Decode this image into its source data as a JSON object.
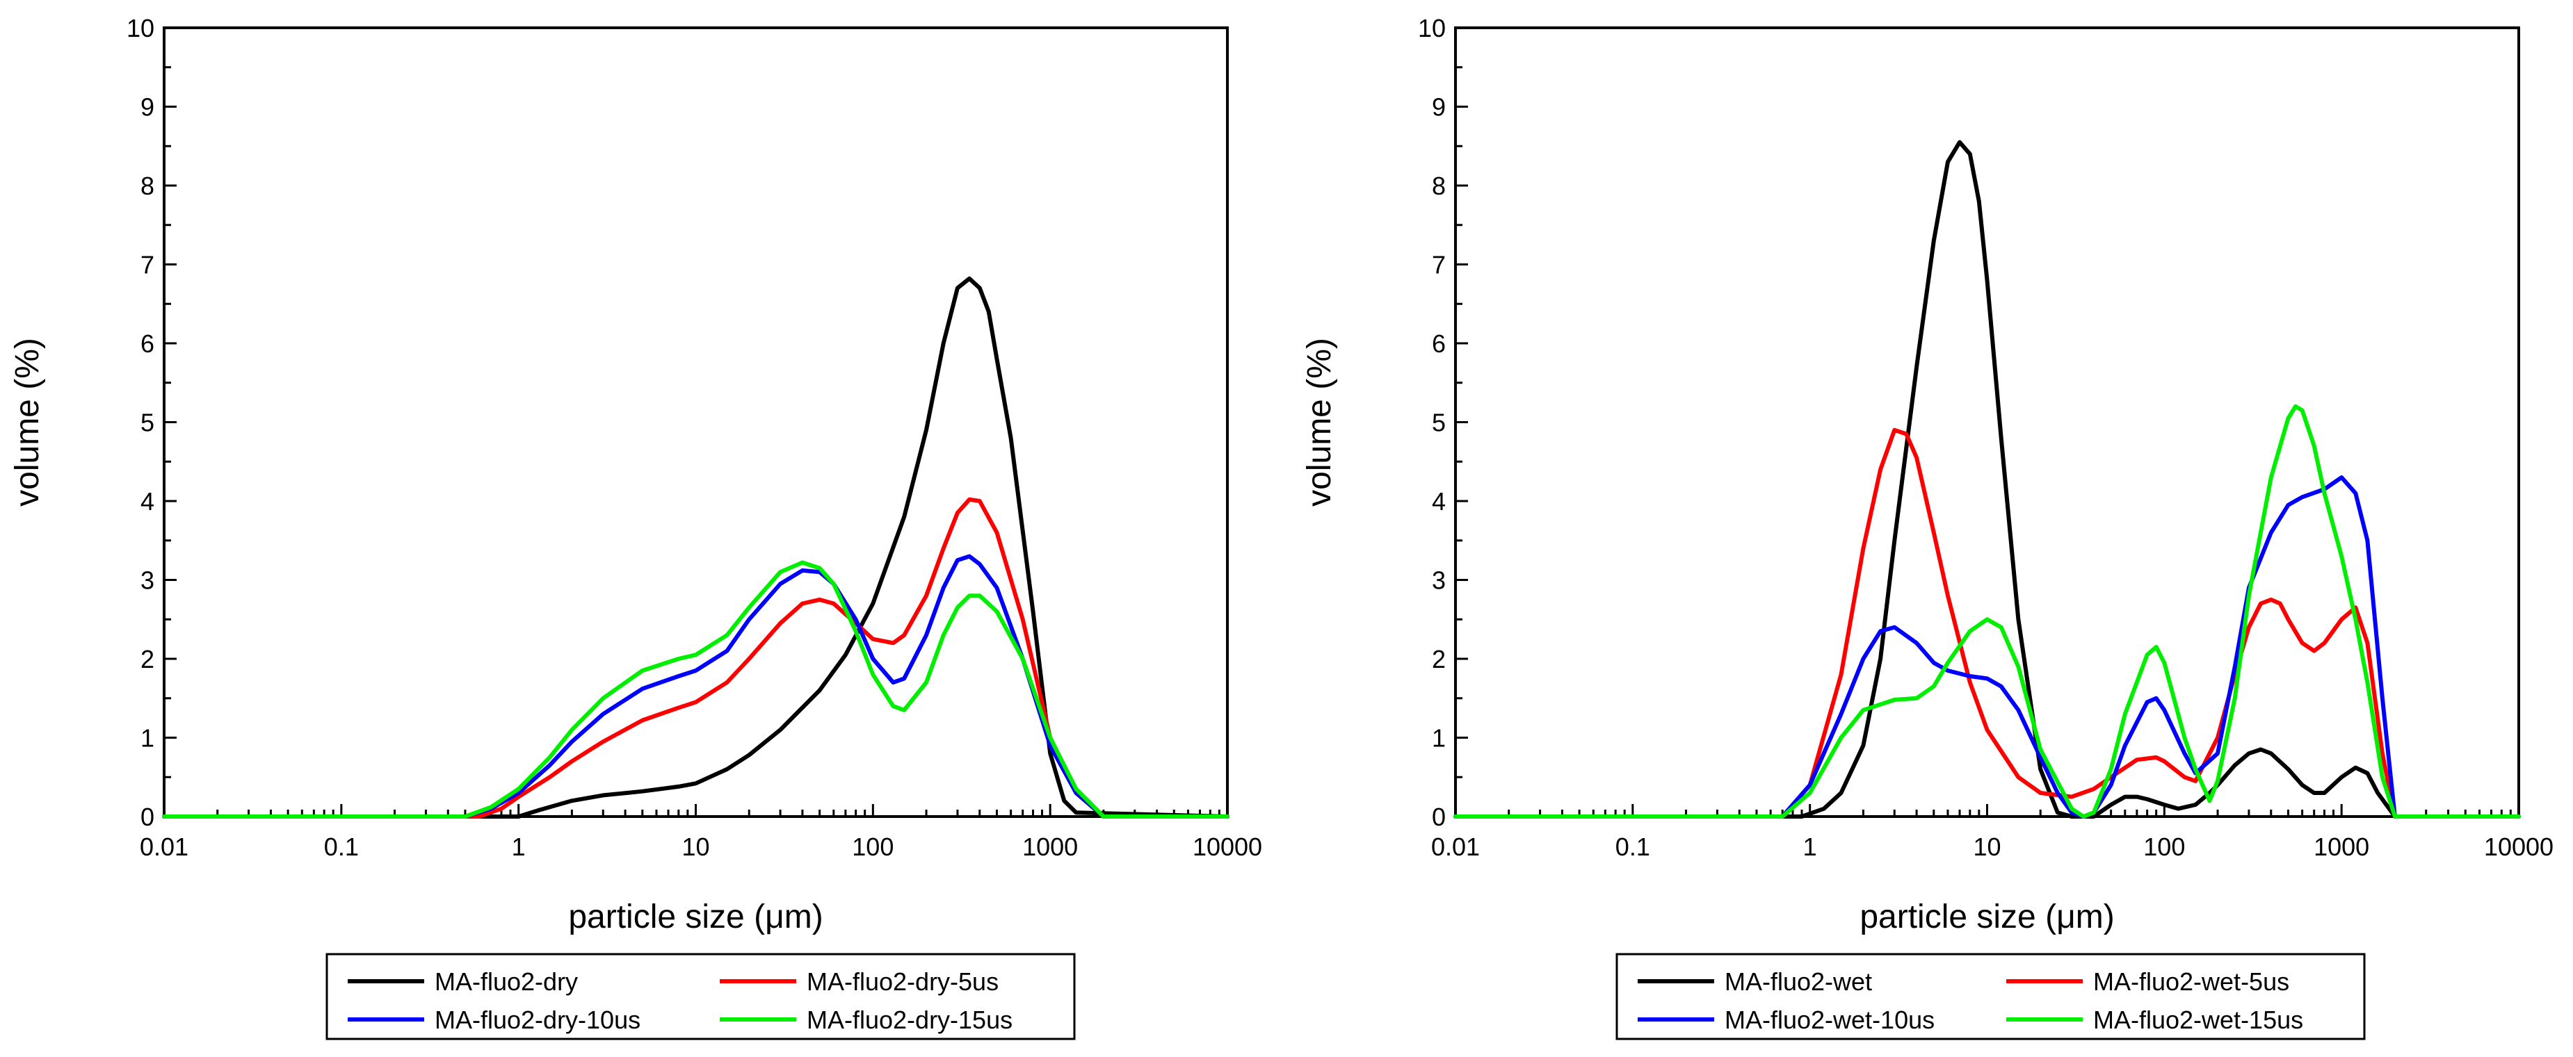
{
  "chart_data": [
    {
      "type": "line",
      "title": "",
      "xlabel": "particle size (μm)",
      "ylabel": "volume (%)",
      "xscale": "log",
      "xlim": [
        0.01,
        10000
      ],
      "ylim": [
        0,
        10
      ],
      "xticks": [
        0.01,
        0.1,
        1,
        10,
        100,
        1000,
        10000
      ],
      "xtick_labels": [
        "0.01",
        "0.1",
        "1",
        "10",
        "100",
        "1000",
        "10000"
      ],
      "yticks": [
        0,
        1,
        2,
        3,
        4,
        5,
        6,
        7,
        8,
        9,
        10
      ],
      "ytick_labels": [
        "0",
        "1",
        "2",
        "3",
        "4",
        "5",
        "6",
        "7",
        "8",
        "9",
        "10"
      ],
      "legend_position": "below",
      "series": [
        {
          "name": "MA-fluo2-dry",
          "color": "#000000",
          "x": [
            0.01,
            1.0,
            1.3,
            2,
            3,
            5,
            8,
            10,
            15,
            20,
            30,
            50,
            70,
            100,
            150,
            200,
            250,
            300,
            350,
            400,
            450,
            500,
            600,
            800,
            1000,
            1200,
            1400,
            10000
          ],
          "y": [
            0,
            0,
            0.08,
            0.2,
            0.27,
            0.32,
            0.38,
            0.42,
            0.6,
            0.78,
            1.1,
            1.6,
            2.05,
            2.7,
            3.8,
            4.9,
            6.0,
            6.7,
            6.82,
            6.7,
            6.4,
            5.8,
            4.8,
            2.6,
            0.8,
            0.2,
            0.05,
            0
          ]
        },
        {
          "name": "MA-fluo2-dry-5us",
          "color": "#ff0000",
          "x": [
            0.01,
            0.6,
            0.8,
            1,
            1.5,
            2,
            3,
            5,
            8,
            10,
            15,
            20,
            30,
            40,
            50,
            60,
            80,
            100,
            130,
            150,
            200,
            250,
            300,
            350,
            400,
            500,
            700,
            1000,
            1400,
            2000,
            10000
          ],
          "y": [
            0,
            0,
            0.1,
            0.25,
            0.5,
            0.7,
            0.95,
            1.22,
            1.38,
            1.45,
            1.7,
            2.0,
            2.45,
            2.7,
            2.75,
            2.7,
            2.45,
            2.25,
            2.2,
            2.3,
            2.8,
            3.4,
            3.85,
            4.02,
            4.0,
            3.6,
            2.5,
            1.0,
            0.3,
            0,
            0
          ]
        },
        {
          "name": "MA-fluo2-dry-10us",
          "color": "#0000ff",
          "x": [
            0.01,
            0.5,
            0.7,
            1,
            1.5,
            2,
            3,
            5,
            8,
            10,
            15,
            20,
            30,
            40,
            50,
            60,
            80,
            100,
            130,
            150,
            200,
            250,
            300,
            350,
            400,
            500,
            700,
            1000,
            1400,
            2000,
            10000
          ],
          "y": [
            0,
            0,
            0.1,
            0.3,
            0.65,
            0.95,
            1.3,
            1.62,
            1.78,
            1.85,
            2.1,
            2.5,
            2.95,
            3.12,
            3.1,
            2.95,
            2.5,
            2.0,
            1.7,
            1.75,
            2.3,
            2.9,
            3.25,
            3.3,
            3.2,
            2.9,
            2.0,
            0.9,
            0.3,
            0,
            0
          ]
        },
        {
          "name": "MA-fluo2-dry-15us",
          "color": "#00ee00",
          "x": [
            0.01,
            0.5,
            0.7,
            1,
            1.5,
            2,
            3,
            5,
            8,
            10,
            15,
            20,
            30,
            40,
            50,
            60,
            80,
            100,
            130,
            150,
            200,
            250,
            300,
            350,
            400,
            500,
            700,
            1000,
            1400,
            2000,
            10000
          ],
          "y": [
            0,
            0,
            0.12,
            0.35,
            0.75,
            1.1,
            1.5,
            1.85,
            2.0,
            2.05,
            2.3,
            2.65,
            3.1,
            3.22,
            3.15,
            2.95,
            2.35,
            1.8,
            1.4,
            1.35,
            1.7,
            2.3,
            2.65,
            2.8,
            2.8,
            2.6,
            2.0,
            1.0,
            0.35,
            0,
            0
          ]
        }
      ]
    },
    {
      "type": "line",
      "title": "",
      "xlabel": "particle size (μm)",
      "ylabel": "volume (%)",
      "xscale": "log",
      "xlim": [
        0.01,
        10000
      ],
      "ylim": [
        0,
        10
      ],
      "xticks": [
        0.01,
        0.1,
        1,
        10,
        100,
        1000,
        10000
      ],
      "xtick_labels": [
        "0.01",
        "0.1",
        "1",
        "10",
        "100",
        "1000",
        "10000"
      ],
      "yticks": [
        0,
        1,
        2,
        3,
        4,
        5,
        6,
        7,
        8,
        9,
        10
      ],
      "ytick_labels": [
        "0",
        "1",
        "2",
        "3",
        "4",
        "5",
        "6",
        "7",
        "8",
        "9",
        "10"
      ],
      "legend_position": "below",
      "series": [
        {
          "name": "MA-fluo2-wet",
          "color": "#000000",
          "x": [
            0.01,
            0.9,
            1.2,
            1.5,
            2,
            2.5,
            3,
            4,
            5,
            6,
            7,
            8,
            9,
            10,
            12,
            15,
            20,
            25,
            30,
            40,
            50,
            60,
            70,
            80,
            100,
            120,
            150,
            180,
            200,
            250,
            300,
            350,
            400,
            500,
            600,
            700,
            800,
            1000,
            1200,
            1400,
            1600,
            2000,
            10000
          ],
          "y": [
            0,
            0,
            0.1,
            0.3,
            0.9,
            2.0,
            3.5,
            5.7,
            7.3,
            8.3,
            8.55,
            8.4,
            7.8,
            6.8,
            4.8,
            2.5,
            0.6,
            0.05,
            0,
            0,
            0.15,
            0.25,
            0.25,
            0.22,
            0.15,
            0.1,
            0.15,
            0.3,
            0.4,
            0.65,
            0.8,
            0.85,
            0.8,
            0.6,
            0.4,
            0.3,
            0.3,
            0.5,
            0.62,
            0.55,
            0.3,
            0,
            0
          ]
        },
        {
          "name": "MA-fluo2-wet-5us",
          "color": "#ff0000",
          "x": [
            0.01,
            0.7,
            1,
            1.5,
            2,
            2.5,
            3,
            3.5,
            4,
            5,
            6,
            8,
            10,
            15,
            20,
            30,
            40,
            50,
            70,
            90,
            100,
            130,
            150,
            200,
            250,
            300,
            350,
            400,
            450,
            500,
            600,
            700,
            800,
            1000,
            1200,
            1400,
            1700,
            2000,
            10000
          ],
          "y": [
            0,
            0,
            0.4,
            1.8,
            3.4,
            4.4,
            4.9,
            4.85,
            4.55,
            3.6,
            2.8,
            1.7,
            1.1,
            0.5,
            0.3,
            0.25,
            0.35,
            0.5,
            0.72,
            0.75,
            0.7,
            0.5,
            0.45,
            1.0,
            1.8,
            2.4,
            2.7,
            2.75,
            2.7,
            2.5,
            2.2,
            2.1,
            2.2,
            2.5,
            2.65,
            2.2,
            0.8,
            0,
            0
          ]
        },
        {
          "name": "MA-fluo2-wet-10us",
          "color": "#0000ff",
          "x": [
            0.01,
            0.7,
            1,
            1.5,
            2,
            2.5,
            3,
            4,
            5,
            6,
            8,
            10,
            12,
            15,
            20,
            25,
            30,
            35,
            40,
            50,
            60,
            80,
            90,
            100,
            130,
            150,
            200,
            250,
            300,
            400,
            500,
            600,
            800,
            1000,
            1200,
            1400,
            1700,
            2000,
            10000
          ],
          "y": [
            0,
            0,
            0.4,
            1.3,
            2.0,
            2.35,
            2.4,
            2.2,
            1.95,
            1.85,
            1.78,
            1.75,
            1.65,
            1.35,
            0.75,
            0.3,
            0.05,
            0,
            0.05,
            0.4,
            0.9,
            1.45,
            1.5,
            1.35,
            0.8,
            0.55,
            0.8,
            1.9,
            2.9,
            3.6,
            3.95,
            4.05,
            4.15,
            4.3,
            4.1,
            3.5,
            1.5,
            0,
            0
          ]
        },
        {
          "name": "MA-fluo2-wet-15us",
          "color": "#00ee00",
          "x": [
            0.01,
            0.7,
            1,
            1.5,
            2,
            3,
            4,
            5,
            6,
            8,
            10,
            12,
            15,
            20,
            30,
            35,
            40,
            50,
            60,
            80,
            90,
            100,
            130,
            150,
            180,
            200,
            250,
            300,
            400,
            500,
            550,
            600,
            700,
            800,
            1000,
            1200,
            1400,
            1700,
            2000,
            10000
          ],
          "y": [
            0,
            0,
            0.3,
            1.0,
            1.35,
            1.48,
            1.5,
            1.65,
            1.95,
            2.35,
            2.5,
            2.4,
            1.9,
            0.85,
            0.1,
            0,
            0.05,
            0.6,
            1.3,
            2.05,
            2.15,
            1.95,
            1.0,
            0.6,
            0.2,
            0.45,
            1.5,
            2.8,
            4.3,
            5.05,
            5.2,
            5.15,
            4.7,
            4.1,
            3.3,
            2.5,
            1.7,
            0.5,
            0,
            0
          ]
        }
      ]
    }
  ]
}
